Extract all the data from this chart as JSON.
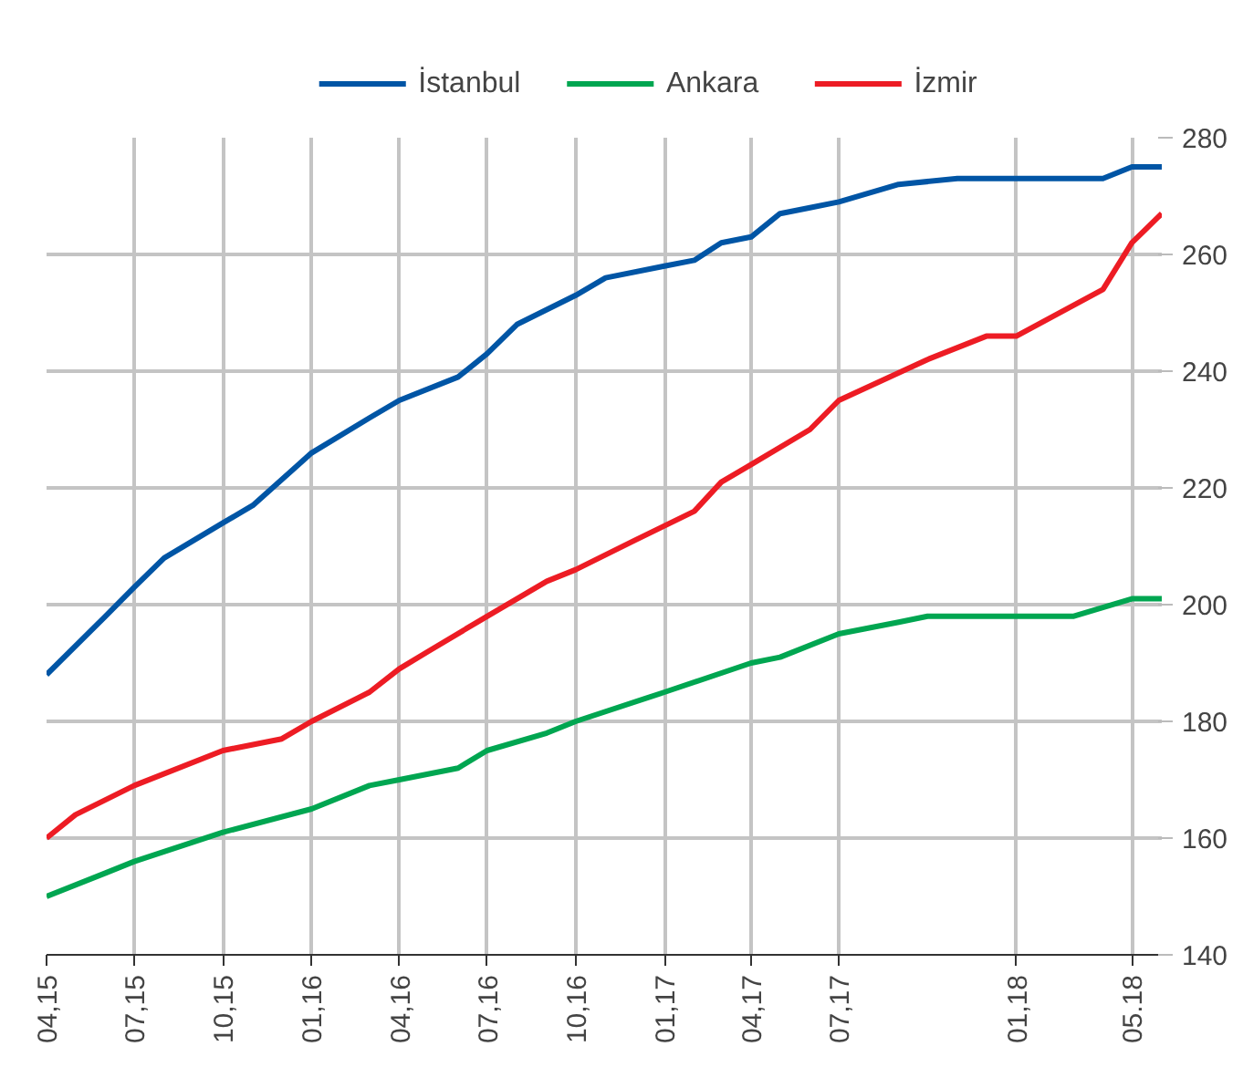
{
  "chart_data": {
    "type": "line",
    "legend": "top",
    "grid": true,
    "line_style": "solid",
    "xlim": [
      "2015-04",
      "2018-06"
    ],
    "ylim": [
      140,
      280
    ],
    "yticks": [
      140,
      160,
      180,
      200,
      220,
      240,
      260,
      280
    ],
    "xticks": [
      {
        "value": "2015-04",
        "label": "04,15"
      },
      {
        "value": "2015-07",
        "label": "07,15"
      },
      {
        "value": "2015-10",
        "label": "10,15"
      },
      {
        "value": "2016-01",
        "label": "01,16"
      },
      {
        "value": "2016-04",
        "label": "04,16"
      },
      {
        "value": "2016-07",
        "label": "07,16"
      },
      {
        "value": "2016-10",
        "label": "10,16"
      },
      {
        "value": "2017-01",
        "label": "01,17"
      },
      {
        "value": "2017-04",
        "label": "04,17"
      },
      {
        "value": "2017-07",
        "label": "07,17"
      },
      {
        "value": "2018-01",
        "label": "01,18"
      },
      {
        "value": "2018-05",
        "label": "05.18"
      }
    ],
    "series": [
      {
        "name": "İstanbul",
        "color": "#0055a5",
        "x": [
          "2015-04",
          "2015-06",
          "2015-07",
          "2015-08",
          "2015-10",
          "2015-11",
          "2016-01",
          "2016-03",
          "2016-04",
          "2016-06",
          "2016-07",
          "2016-08",
          "2016-10",
          "2016-11",
          "2017-01",
          "2017-02",
          "2017-03",
          "2017-04",
          "2017-05",
          "2017-06",
          "2017-07",
          "2017-09",
          "2017-11",
          "2018-01",
          "2018-04",
          "2018-05",
          "2018-06"
        ],
        "values": [
          188,
          198,
          203,
          208,
          214,
          217,
          226,
          232,
          235,
          239,
          243,
          248,
          253,
          256,
          258,
          259,
          262,
          263,
          267,
          268,
          269,
          272,
          273,
          273,
          273,
          275,
          275
        ]
      },
      {
        "name": "Ankara",
        "color": "#00a651",
        "x": [
          "2015-04",
          "2015-06",
          "2015-07",
          "2015-10",
          "2016-01",
          "2016-03",
          "2016-04",
          "2016-06",
          "2016-07",
          "2016-09",
          "2016-10",
          "2017-01",
          "2017-04",
          "2017-05",
          "2017-07",
          "2017-09",
          "2017-10",
          "2018-01",
          "2018-03",
          "2018-05",
          "2018-06"
        ],
        "values": [
          150,
          154,
          156,
          161,
          165,
          169,
          170,
          172,
          175,
          178,
          180,
          185,
          190,
          191,
          195,
          197,
          198,
          198,
          198,
          201,
          201
        ]
      },
      {
        "name": "İzmir",
        "color": "#ed1c24",
        "x": [
          "2015-04",
          "2015-05",
          "2015-07",
          "2015-10",
          "2015-12",
          "2016-01",
          "2016-03",
          "2016-04",
          "2016-05",
          "2016-07",
          "2016-09",
          "2016-10",
          "2016-12",
          "2017-02",
          "2017-03",
          "2017-04",
          "2017-06",
          "2017-07",
          "2017-10",
          "2017-12",
          "2018-01",
          "2018-04",
          "2018-05",
          "2018-06"
        ],
        "values": [
          160,
          164,
          169,
          175,
          177,
          180,
          185,
          189,
          192,
          198,
          204,
          206,
          211,
          216,
          221,
          224,
          230,
          235,
          242,
          246,
          246,
          254,
          262,
          267
        ]
      }
    ]
  }
}
